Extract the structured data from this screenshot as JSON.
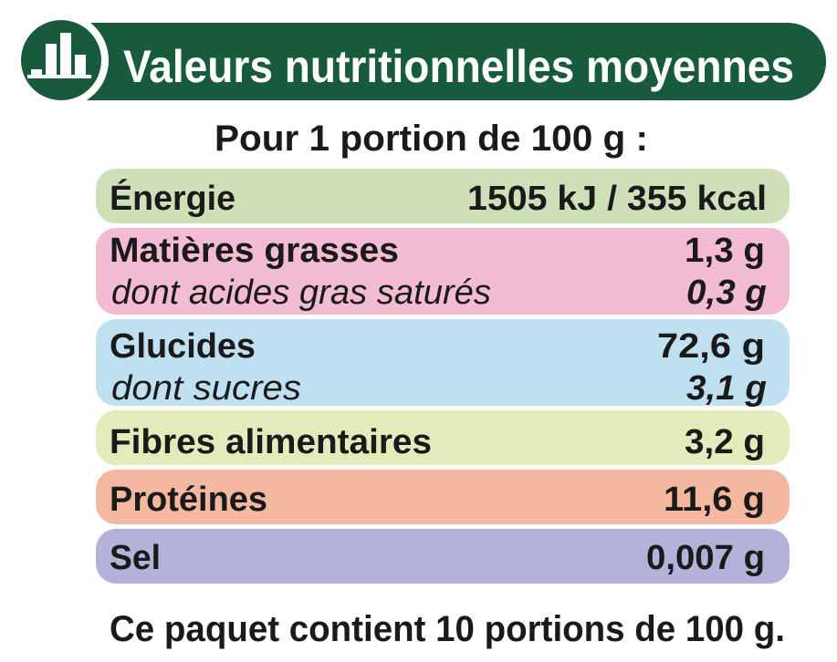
{
  "header": {
    "title": "Valeurs nutritionnelles moyennes"
  },
  "subtitle": "Pour 1 portion de 100 g :",
  "rows": [
    {
      "label": "Énergie",
      "value": "1505 kJ / 355 kcal"
    },
    {
      "label": "Matières grasses",
      "value": "1,3 g",
      "sub": {
        "label": "dont acides gras saturés",
        "value": "0,3 g"
      }
    },
    {
      "label": "Glucides",
      "value": "72,6 g",
      "sub": {
        "label": "dont sucres",
        "value": "3,1 g"
      }
    },
    {
      "label": "Fibres alimentaires",
      "value": "3,2 g"
    },
    {
      "label": "Protéines",
      "value": "11,6 g"
    },
    {
      "label": "Sel",
      "value": "0,007 g"
    }
  ],
  "footer": "Ce paquet contient 10 portions de 100 g."
}
